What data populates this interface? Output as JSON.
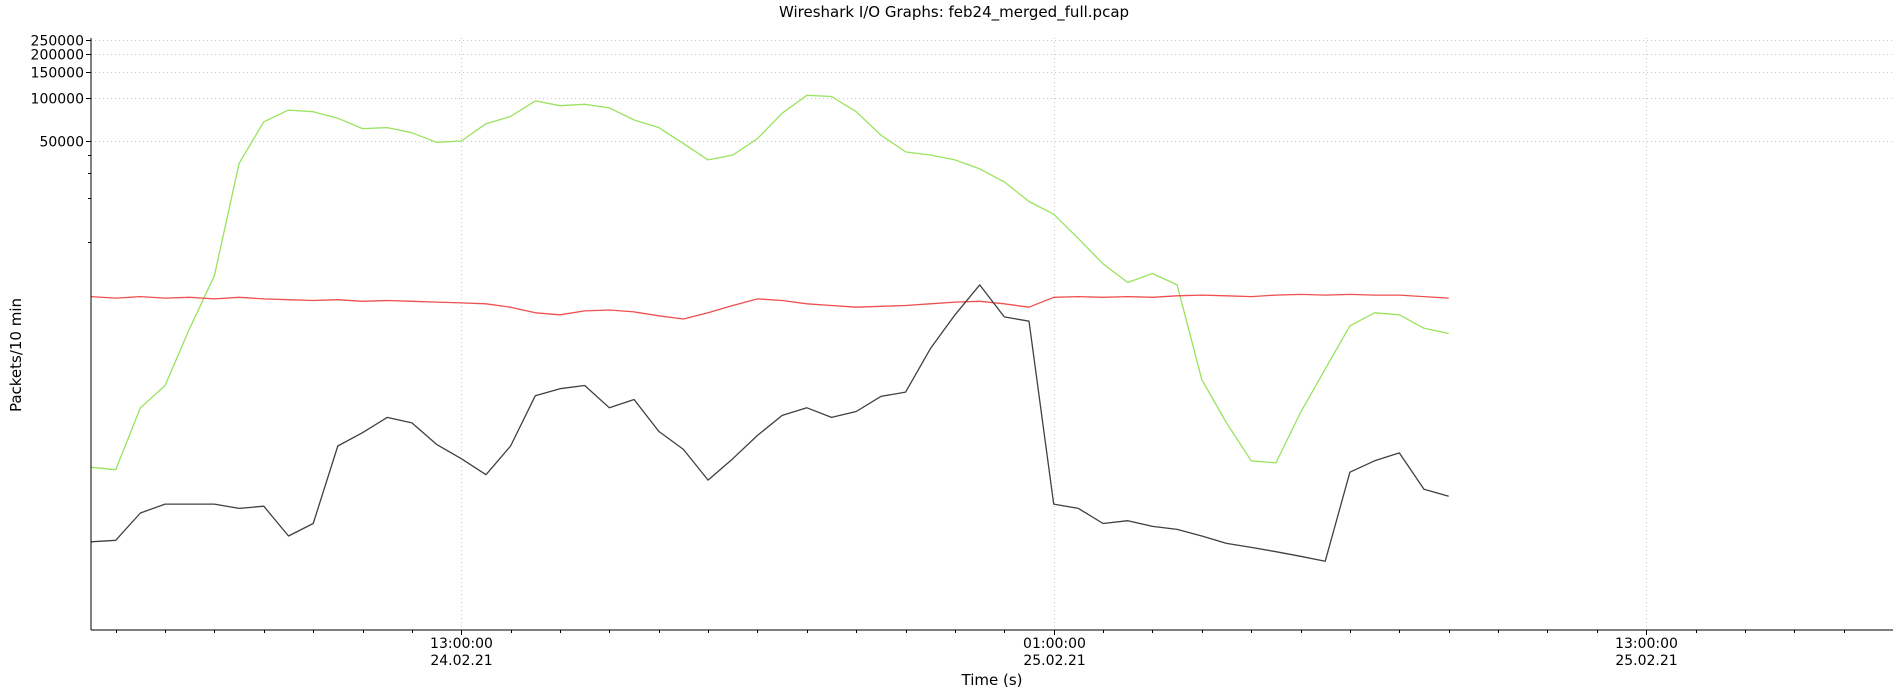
{
  "chart_data": {
    "type": "line",
    "title": "Wireshark I/O Graphs: feb24_merged_full.pcap",
    "xlabel": "Time (s)",
    "ylabel": "Packets/10 min",
    "yscale": "log",
    "grid": true,
    "legend": "none",
    "x_unit": "2021-02-24 hours",
    "xlim": [
      5.5,
      42
    ],
    "ylim": [
      20,
      260000
    ],
    "x_ticks": [
      {
        "value": 13,
        "line1": "13:00:00",
        "line2": "24.02.21"
      },
      {
        "value": 25,
        "line1": "01:00:00",
        "line2": "25.02.21"
      },
      {
        "value": 37,
        "line1": "13:00:00",
        "line2": "25.02.21"
      }
    ],
    "x_minor_ticks": [
      6,
      7,
      8,
      9,
      10,
      11,
      12,
      14,
      15,
      16,
      17,
      18,
      19,
      20,
      21,
      22,
      23,
      24,
      26,
      27,
      28,
      29,
      30,
      31,
      32,
      33,
      34,
      35,
      36,
      38,
      39,
      40,
      41
    ],
    "y_tick_labels": [
      "250000",
      "200000",
      "150000",
      "100000",
      "50000"
    ],
    "y_tick_values": [
      250000,
      200000,
      150000,
      100000,
      50000
    ],
    "y_minor_ticks": [
      40000,
      30000,
      20000,
      10000
    ],
    "series": [
      {
        "color": "#99e35d",
        "x": [
          4,
          4.5,
          5,
          5.5,
          6,
          6.5,
          7,
          7.5,
          8,
          8.5,
          9,
          9.5,
          10,
          10.5,
          11,
          11.5,
          12,
          12.5,
          13,
          13.5,
          14,
          14.5,
          15,
          15.5,
          16,
          16.5,
          17,
          17.5,
          18,
          18.5,
          19,
          19.5,
          20,
          20.5,
          21,
          21.5,
          22,
          22.5,
          23,
          23.5,
          24,
          24.5,
          25,
          25.5,
          26,
          26.5,
          27,
          27.5,
          28,
          28.5,
          29,
          29.5,
          30,
          30.5,
          31,
          31.5,
          32,
          32.5,
          33
        ],
        "values": [
          300,
          290,
          280,
          270,
          260,
          700,
          1000,
          2500,
          5800,
          35000,
          68000,
          82000,
          80000,
          72000,
          61000,
          62000,
          57000,
          49000,
          50000,
          66000,
          74000,
          95000,
          88000,
          90000,
          85000,
          70000,
          62000,
          48000,
          37000,
          40000,
          52000,
          78000,
          104000,
          102000,
          80000,
          55000,
          42000,
          40000,
          37000,
          32000,
          26000,
          19000,
          15500,
          10500,
          7000,
          5200,
          6000,
          5000,
          1100,
          550,
          300,
          290,
          650,
          1300,
          2600,
          3200,
          3100,
          2500,
          2300
        ]
      },
      {
        "color": "#ef4f4f",
        "x": [
          4,
          4.5,
          5,
          5.5,
          6,
          6.5,
          7,
          7.5,
          8,
          8.5,
          9,
          9.5,
          10,
          10.5,
          11,
          11.5,
          12,
          12.5,
          13,
          13.5,
          14,
          14.5,
          15,
          15.5,
          16,
          16.5,
          17,
          17.5,
          18,
          18.5,
          19,
          19.5,
          20,
          20.5,
          21,
          21.5,
          22,
          22.5,
          23,
          23.5,
          24,
          24.5,
          25,
          25.5,
          26,
          26.5,
          27,
          27.5,
          28,
          28.5,
          29,
          29.5,
          30,
          30.5,
          31,
          31.5,
          32,
          32.5,
          33
        ],
        "values": [
          4100,
          4200,
          4050,
          4150,
          4050,
          4150,
          4050,
          4100,
          4000,
          4100,
          4000,
          3950,
          3900,
          3950,
          3850,
          3900,
          3850,
          3800,
          3750,
          3700,
          3500,
          3200,
          3100,
          3300,
          3350,
          3250,
          3050,
          2900,
          3200,
          3600,
          4000,
          3900,
          3700,
          3600,
          3500,
          3550,
          3600,
          3700,
          3800,
          3850,
          3700,
          3500,
          4100,
          4150,
          4100,
          4150,
          4100,
          4200,
          4250,
          4200,
          4150,
          4250,
          4300,
          4250,
          4300,
          4250,
          4250,
          4150,
          4050
        ]
      },
      {
        "color": "#404040",
        "x": [
          4,
          4.5,
          5,
          5.5,
          6,
          6.5,
          7,
          7.5,
          8,
          8.5,
          9,
          9.5,
          10,
          10.5,
          11,
          11.5,
          12,
          12.5,
          13,
          13.5,
          14,
          14.5,
          15,
          15.5,
          16,
          16.5,
          17,
          17.5,
          18,
          18.5,
          19,
          19.5,
          20,
          20.5,
          21,
          21.5,
          22,
          22.5,
          23,
          23.5,
          24,
          24.5,
          25,
          25.5,
          26,
          26.5,
          27,
          27.5,
          28,
          28.5,
          29,
          29.5,
          30,
          30.5,
          31,
          31.5,
          32,
          32.5,
          33
        ],
        "values": [
          82,
          80,
          78,
          82,
          84,
          130,
          150,
          150,
          150,
          140,
          145,
          90,
          110,
          380,
          470,
          600,
          550,
          390,
          310,
          240,
          380,
          850,
          950,
          1000,
          700,
          800,
          480,
          360,
          220,
          310,
          450,
          620,
          700,
          600,
          660,
          840,
          900,
          1800,
          3100,
          5000,
          3000,
          2800,
          150,
          140,
          110,
          115,
          105,
          100,
          90,
          80,
          75,
          70,
          65,
          60,
          250,
          300,
          340,
          190,
          170
        ]
      }
    ]
  }
}
